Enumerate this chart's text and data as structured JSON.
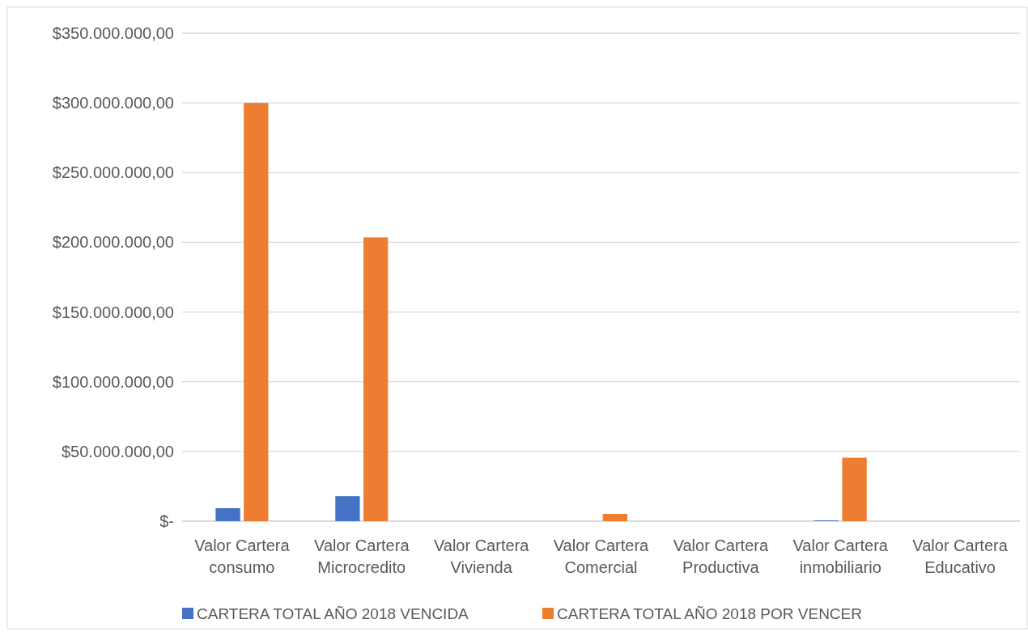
{
  "chart_data": {
    "type": "bar",
    "categories": [
      "Valor Cartera consumo",
      "Valor Cartera Microcredito",
      "Valor Cartera Vivienda",
      "Valor Cartera Comercial",
      "Valor Cartera Productiva",
      "Valor Cartera inmobiliario",
      "Valor Cartera Educativo"
    ],
    "series": [
      {
        "name": "CARTERA TOTAL AÑO 2018 VENCIDA",
        "color": "#4472c4",
        "values": [
          9300000,
          17900000,
          0,
          0,
          0,
          500000,
          0
        ]
      },
      {
        "name": "CARTERA TOTAL AÑO 2018 POR VENCER",
        "color": "#ed7d31",
        "values": [
          300000000,
          203500000,
          0,
          5200000,
          0,
          45500000,
          0
        ]
      }
    ],
    "ylim": [
      0,
      350000000
    ],
    "yticks": [
      {
        "value": 0,
        "label": "$-"
      },
      {
        "value": 50000000,
        "label": "$50.000.000,00"
      },
      {
        "value": 100000000,
        "label": "$100.000.000,00"
      },
      {
        "value": 150000000,
        "label": "$150.000.000,00"
      },
      {
        "value": 200000000,
        "label": "$200.000.000,00"
      },
      {
        "value": 250000000,
        "label": "$250.000.000,00"
      },
      {
        "value": 300000000,
        "label": "$300.000.000,00"
      },
      {
        "value": 350000000,
        "label": "$350.000.000,00"
      }
    ],
    "grid": "y",
    "legend": "bottom"
  }
}
